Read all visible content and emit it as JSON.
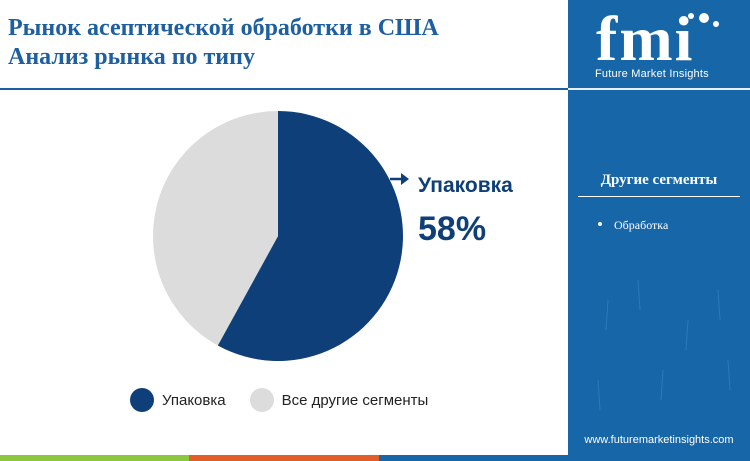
{
  "title_line1": "Рынок асептической обработки в США",
  "title_line2": "Анализ рынка по типу",
  "chart_data": {
    "type": "pie",
    "categories": [
      "Упаковка",
      "Все другие сегменты"
    ],
    "values": [
      58,
      42
    ],
    "unit": "%",
    "colors": [
      "#0f3f78",
      "#dcdcdc"
    ],
    "callout": {
      "label": "Упаковка",
      "value": "58%"
    },
    "legend_position": "bottom"
  },
  "legend": [
    {
      "label": "Упаковка",
      "color": "#0f3f78"
    },
    {
      "label": "Все другие сегменты",
      "color": "#dcdcdc"
    }
  ],
  "sidebar": {
    "logo_text": "fmi",
    "logo_caption": "Future Market Insights",
    "segments_title": "Другие сегменты",
    "segments": [
      "Обработка"
    ],
    "website": "www.futuremarketinsights.com",
    "background": "#1766a8"
  },
  "bottom_bar_colors": [
    "#8dc63f",
    "#e35d2b",
    "#1766a8"
  ]
}
